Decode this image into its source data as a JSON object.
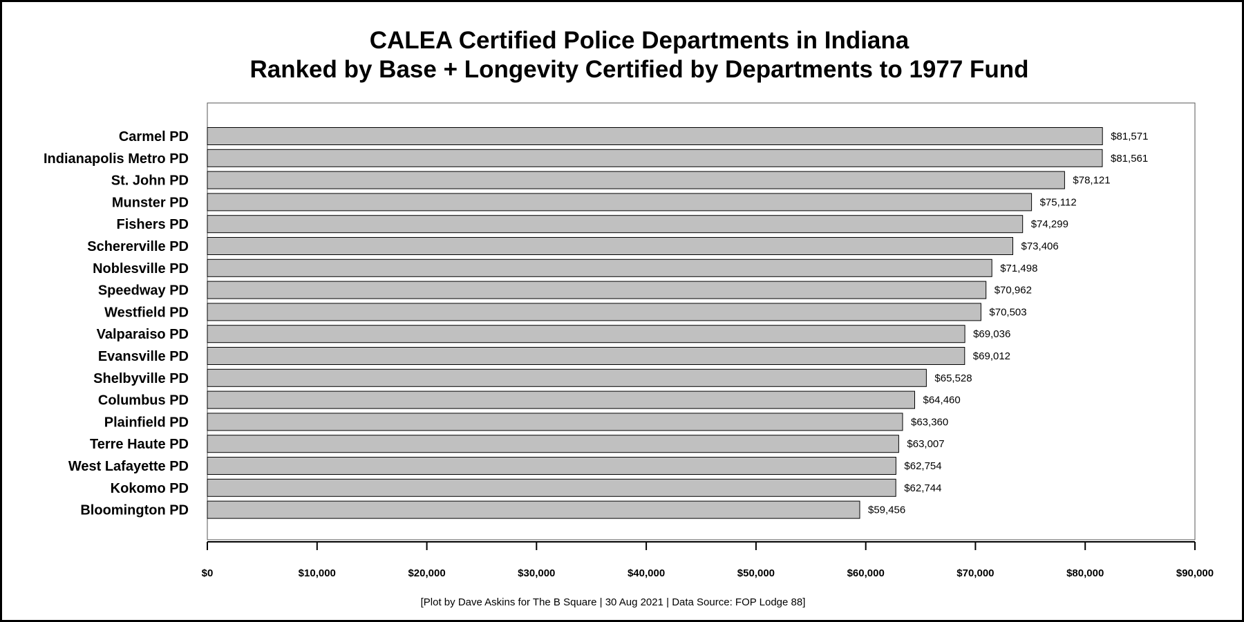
{
  "chart_data": {
    "type": "bar",
    "orientation": "horizontal",
    "title": "CALEA Certified Police Departments in Indiana",
    "subtitle": "Ranked by Base + Longevity Certified by Departments to 1977 Fund",
    "source": "[Plot by Dave Askins for The B Square | 30 Aug 2021 | Data Source: FOP Lodge 88]",
    "categories": [
      "Carmel PD",
      "Indianapolis Metro PD",
      "St. John PD",
      "Munster PD",
      "Fishers PD",
      "Schererville PD",
      "Noblesville PD",
      "Speedway PD",
      "Westfield PD",
      "Valparaiso PD",
      "Evansville PD",
      "Shelbyville PD",
      "Columbus PD",
      "Plainfield PD",
      "Terre Haute PD",
      "West Lafayette PD",
      "Kokomo PD",
      "Bloomington PD"
    ],
    "values": [
      81571,
      81561,
      78121,
      75112,
      74299,
      73406,
      71498,
      70962,
      70503,
      69036,
      69012,
      65528,
      64460,
      63360,
      63007,
      62754,
      62744,
      59456
    ],
    "value_labels": [
      "$81,571",
      "$81,561",
      "$78,121",
      "$75,112",
      "$74,299",
      "$73,406",
      "$71,498",
      "$70,962",
      "$70,503",
      "$69,036",
      "$69,012",
      "$65,528",
      "$64,460",
      "$63,360",
      "$63,007",
      "$62,754",
      "$62,744",
      "$59,456"
    ],
    "xlim": [
      0,
      90000
    ],
    "x_ticks": [
      0,
      10000,
      20000,
      30000,
      40000,
      50000,
      60000,
      70000,
      80000,
      90000
    ],
    "x_tick_labels": [
      "$0",
      "$10,000",
      "$20,000",
      "$30,000",
      "$40,000",
      "$50,000",
      "$60,000",
      "$70,000",
      "$80,000",
      "$90,000"
    ],
    "xlabel": "",
    "ylabel": "",
    "grid": false,
    "legend": "none",
    "colors": {
      "bar_fill": "#c0c0c0",
      "bar_stroke": "#000000",
      "frame": "#000000"
    }
  }
}
